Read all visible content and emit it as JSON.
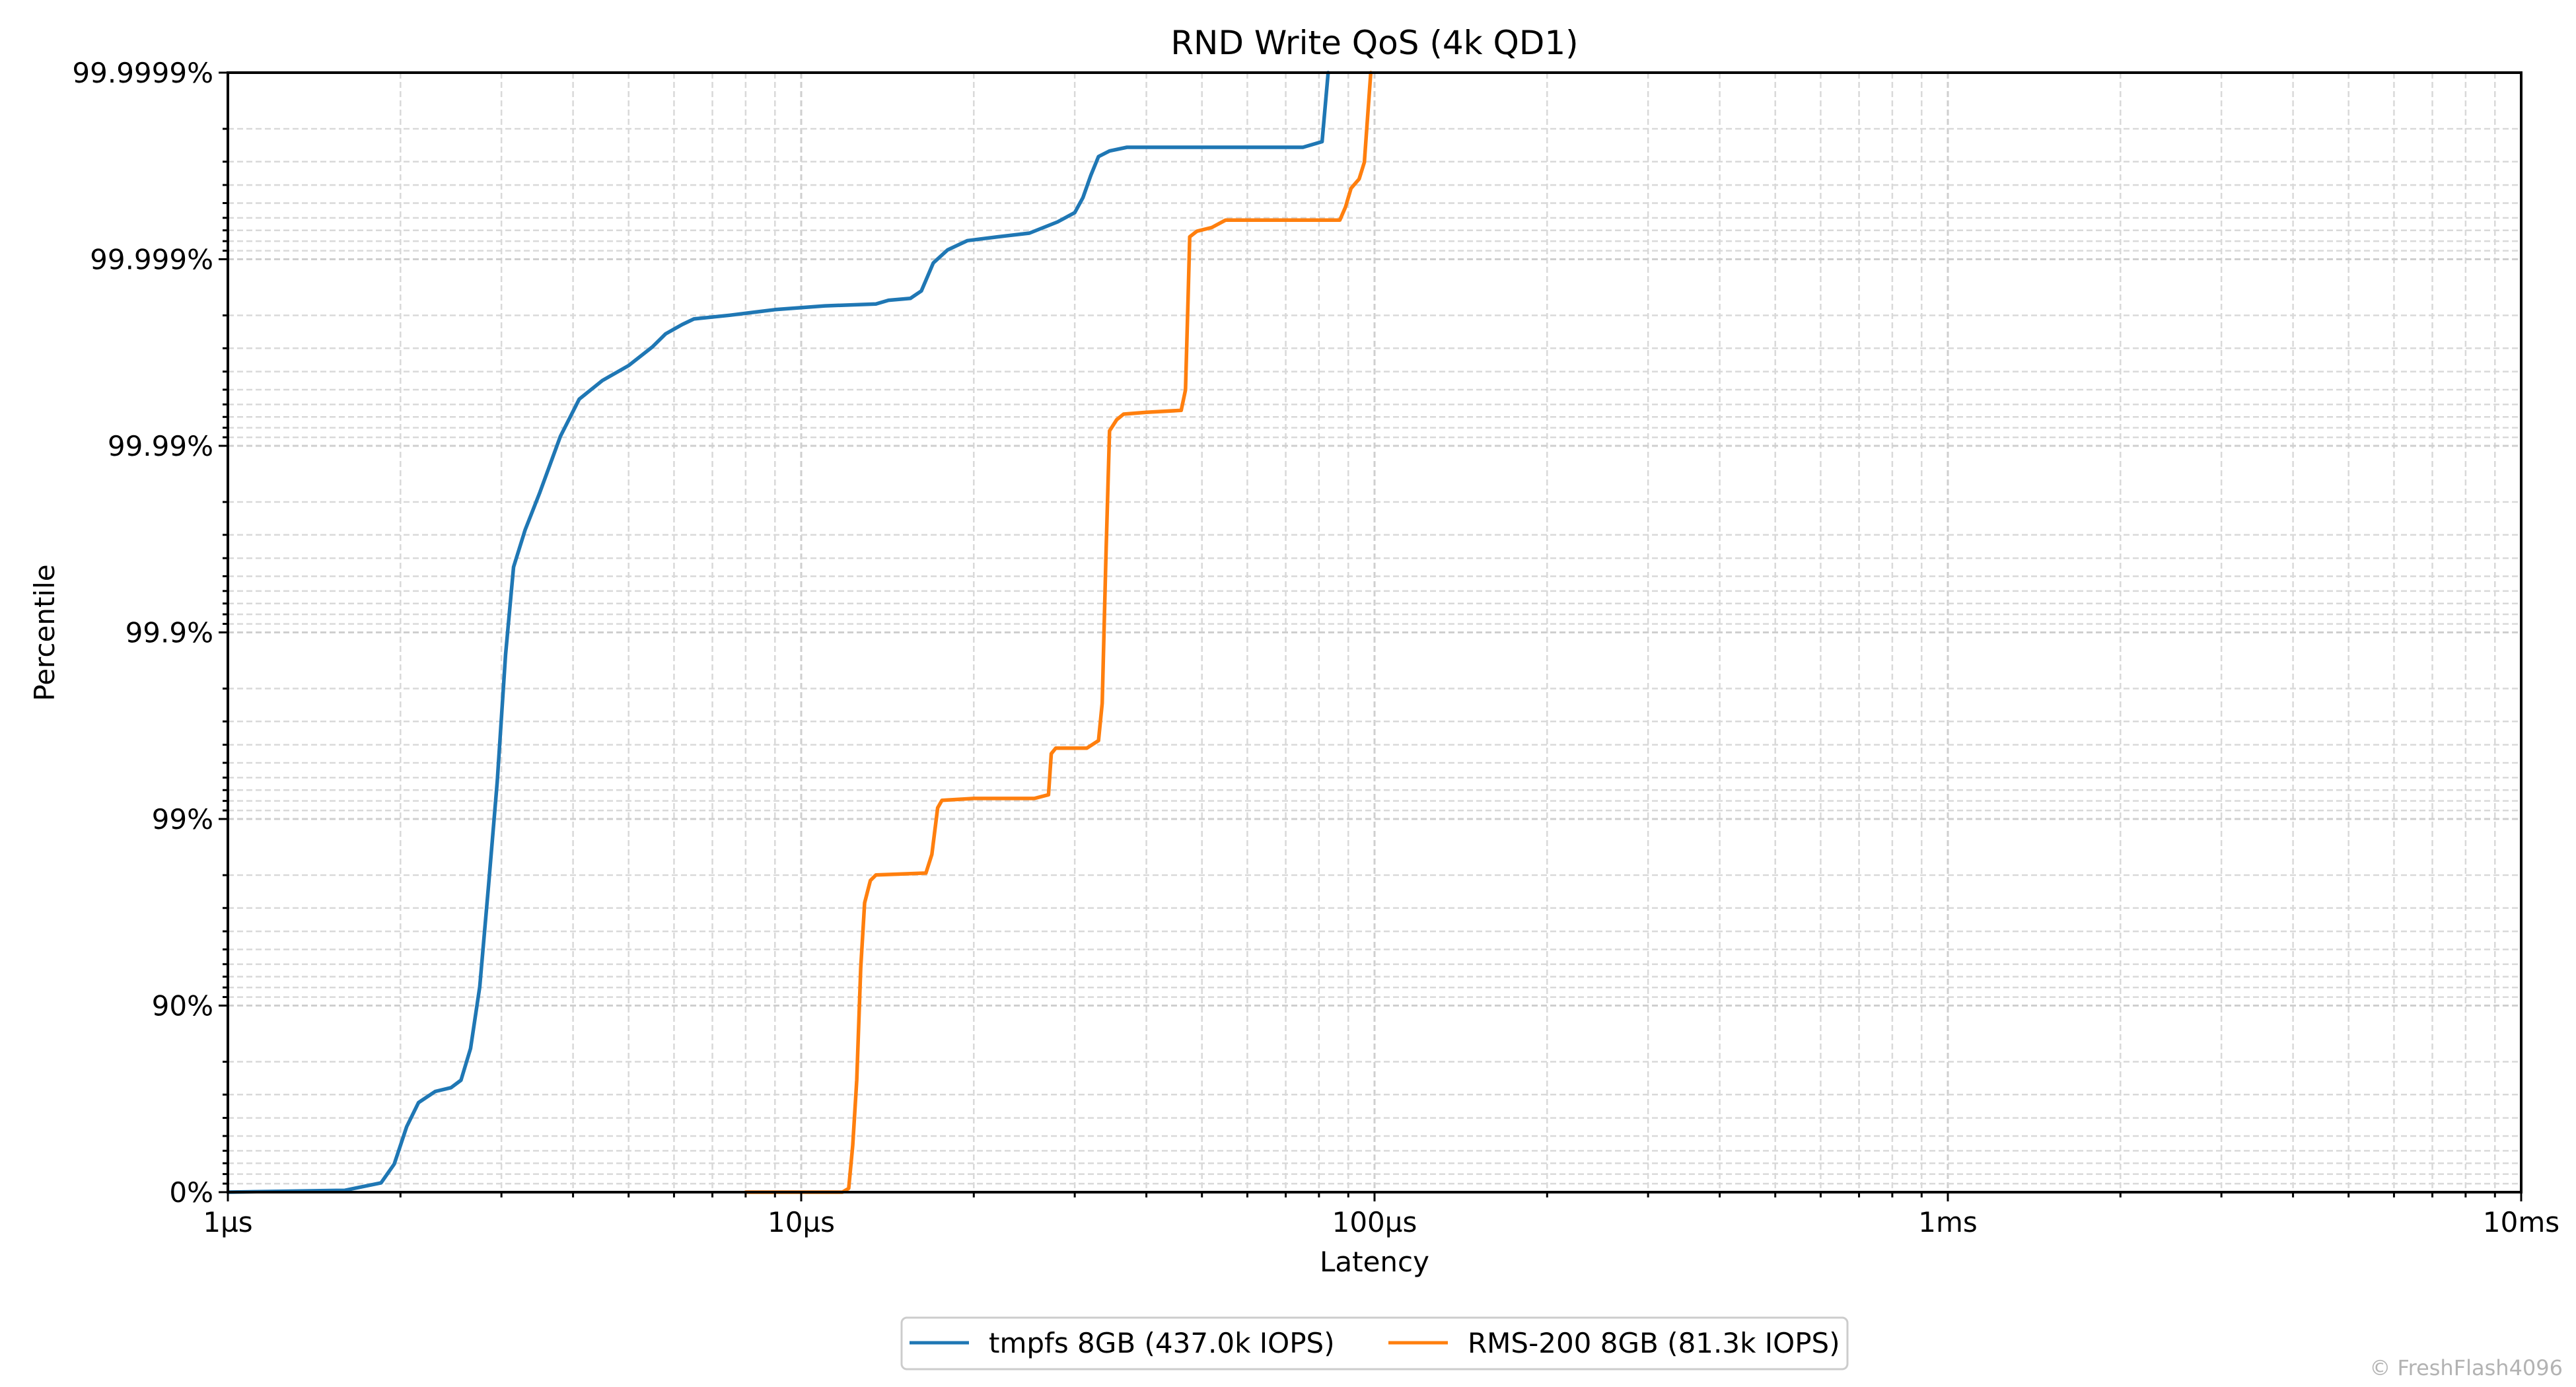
{
  "chart_data": {
    "type": "line",
    "title": "RND Write QoS (4k QD1)",
    "xlabel": "Latency",
    "ylabel": "Percentile",
    "x_scale": "log",
    "y_scale": "log-nines",
    "xlim_us": [
      1,
      10000
    ],
    "ylim_nines": [
      0,
      6
    ],
    "grid": true,
    "legend_position": "bottom-center",
    "x_ticks": [
      {
        "value_us": 1,
        "label": "1µs"
      },
      {
        "value_us": 10,
        "label": "10µs"
      },
      {
        "value_us": 100,
        "label": "100µs"
      },
      {
        "value_us": 1000,
        "label": "1ms"
      },
      {
        "value_us": 10000,
        "label": "10ms"
      }
    ],
    "y_ticks": [
      {
        "value_percentile": 0,
        "label": "0%"
      },
      {
        "value_percentile": 90,
        "label": "90%"
      },
      {
        "value_percentile": 99,
        "label": "99%"
      },
      {
        "value_percentile": 99.9,
        "label": "99.9%"
      },
      {
        "value_percentile": 99.99,
        "label": "99.99%"
      },
      {
        "value_percentile": 99.999,
        "label": "99.999%"
      },
      {
        "value_percentile": 99.9999,
        "label": "99.9999%"
      }
    ],
    "series": [
      {
        "name": "tmpfs 8GB (437.0k IOPS)",
        "color": "#1f77b4",
        "points_us_nines": [
          [
            1.0,
            0.0
          ],
          [
            1.6,
            0.01
          ],
          [
            1.85,
            0.05
          ],
          [
            1.95,
            0.15
          ],
          [
            2.05,
            0.35
          ],
          [
            2.15,
            0.48
          ],
          [
            2.3,
            0.54
          ],
          [
            2.45,
            0.56
          ],
          [
            2.55,
            0.6
          ],
          [
            2.65,
            0.77
          ],
          [
            2.75,
            1.1
          ],
          [
            2.85,
            1.65
          ],
          [
            2.95,
            2.2
          ],
          [
            3.05,
            2.88
          ],
          [
            3.15,
            3.35
          ],
          [
            3.3,
            3.55
          ],
          [
            3.5,
            3.75
          ],
          [
            3.8,
            4.05
          ],
          [
            4.1,
            4.25
          ],
          [
            4.5,
            4.35
          ],
          [
            5.0,
            4.43
          ],
          [
            5.5,
            4.53
          ],
          [
            5.8,
            4.6
          ],
          [
            6.2,
            4.65
          ],
          [
            6.5,
            4.68
          ],
          [
            7.5,
            4.7
          ],
          [
            9.0,
            4.73
          ],
          [
            11.0,
            4.75
          ],
          [
            13.5,
            4.76
          ],
          [
            14.2,
            4.78
          ],
          [
            15.5,
            4.79
          ],
          [
            16.2,
            4.83
          ],
          [
            17.0,
            4.98
          ],
          [
            18.0,
            5.05
          ],
          [
            19.5,
            5.1
          ],
          [
            22.0,
            5.12
          ],
          [
            25.0,
            5.14
          ],
          [
            28.0,
            5.2
          ],
          [
            30.0,
            5.25
          ],
          [
            31.0,
            5.33
          ],
          [
            32.0,
            5.45
          ],
          [
            33.0,
            5.55
          ],
          [
            34.5,
            5.58
          ],
          [
            37.0,
            5.6
          ],
          [
            50.0,
            5.6
          ],
          [
            75.0,
            5.6
          ],
          [
            81.0,
            5.63
          ],
          [
            83.0,
            6.0
          ]
        ]
      },
      {
        "name": "RMS-200 8GB (81.3k IOPS)",
        "color": "#ff7f0e",
        "points_us_nines": [
          [
            8.0,
            0.0
          ],
          [
            11.8,
            0.0
          ],
          [
            12.1,
            0.02
          ],
          [
            12.3,
            0.25
          ],
          [
            12.5,
            0.6
          ],
          [
            12.7,
            1.2
          ],
          [
            12.9,
            1.55
          ],
          [
            13.2,
            1.67
          ],
          [
            13.5,
            1.7
          ],
          [
            16.5,
            1.71
          ],
          [
            16.9,
            1.81
          ],
          [
            17.3,
            2.06
          ],
          [
            17.6,
            2.1
          ],
          [
            20.0,
            2.11
          ],
          [
            25.5,
            2.11
          ],
          [
            27.0,
            2.13
          ],
          [
            27.3,
            2.35
          ],
          [
            27.8,
            2.38
          ],
          [
            31.5,
            2.38
          ],
          [
            33.0,
            2.42
          ],
          [
            33.5,
            2.62
          ],
          [
            34.0,
            3.4
          ],
          [
            34.5,
            4.08
          ],
          [
            35.5,
            4.14
          ],
          [
            36.5,
            4.17
          ],
          [
            40.0,
            4.18
          ],
          [
            46.0,
            4.19
          ],
          [
            46.8,
            4.3
          ],
          [
            47.3,
            4.8
          ],
          [
            47.6,
            5.12
          ],
          [
            49.0,
            5.15
          ],
          [
            52.0,
            5.17
          ],
          [
            55.0,
            5.21
          ],
          [
            70.0,
            5.21
          ],
          [
            87.0,
            5.21
          ],
          [
            89.0,
            5.28
          ],
          [
            91.0,
            5.38
          ],
          [
            94.0,
            5.43
          ],
          [
            96.0,
            5.52
          ],
          [
            98.5,
            6.0
          ]
        ]
      }
    ]
  },
  "watermark": "© FreshFlash4096"
}
